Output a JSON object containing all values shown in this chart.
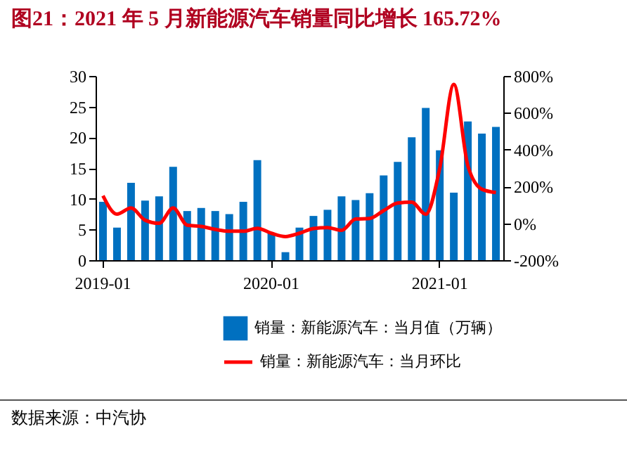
{
  "chart_data": {
    "type": "bar",
    "title": "图21：2021 年 5 月新能源汽车销量同比增长 165.72%",
    "categories": [
      "2019-01",
      null,
      null,
      null,
      null,
      null,
      null,
      null,
      null,
      null,
      null,
      null,
      "2020-01",
      null,
      null,
      null,
      null,
      null,
      null,
      null,
      null,
      null,
      null,
      null,
      "2021-01",
      null,
      null,
      null,
      null
    ],
    "series": [
      {
        "name": "销量：新能源汽车：当月值（万辆）",
        "color": "#0070c0",
        "values": [
          9.5,
          5.3,
          12.6,
          9.7,
          10.4,
          15.2,
          8.0,
          8.5,
          8.0,
          7.5,
          9.5,
          16.3,
          4.4,
          1.3,
          5.3,
          7.2,
          8.2,
          10.4,
          9.8,
          10.9,
          13.8,
          16.0,
          20.0,
          24.8,
          17.9,
          11.0,
          22.6,
          20.6,
          21.7
        ]
      },
      {
        "name": "销量：新能源汽车：当月环比",
        "type": "line",
        "axis": "y2",
        "color": "#ff0000",
        "values": [
          150,
          50,
          83,
          17,
          0,
          83,
          -10,
          -17,
          -33,
          -43,
          -43,
          -27,
          -54,
          -72,
          -54,
          -28,
          -23,
          -38,
          23,
          26,
          69,
          110,
          115,
          49,
          300,
          754,
          313,
          185,
          167
        ]
      }
    ],
    "ylim": [
      0,
      30
    ],
    "yticks": [
      0,
      5,
      10,
      15,
      20,
      25,
      30
    ],
    "y2lim": [
      -200,
      800
    ],
    "y2ticks": [
      {
        "value": -200,
        "label": "-200%"
      },
      {
        "value": 0,
        "label": "0%"
      },
      {
        "value": 200,
        "label": "200%"
      },
      {
        "value": 400,
        "label": "400%"
      },
      {
        "value": 600,
        "label": "600%"
      },
      {
        "value": 800,
        "label": "800%"
      }
    ],
    "grid": false,
    "legend": "bottom",
    "marker": "none",
    "line_style": "solid",
    "annotations": [
      "数据来源：中汽协"
    ]
  }
}
